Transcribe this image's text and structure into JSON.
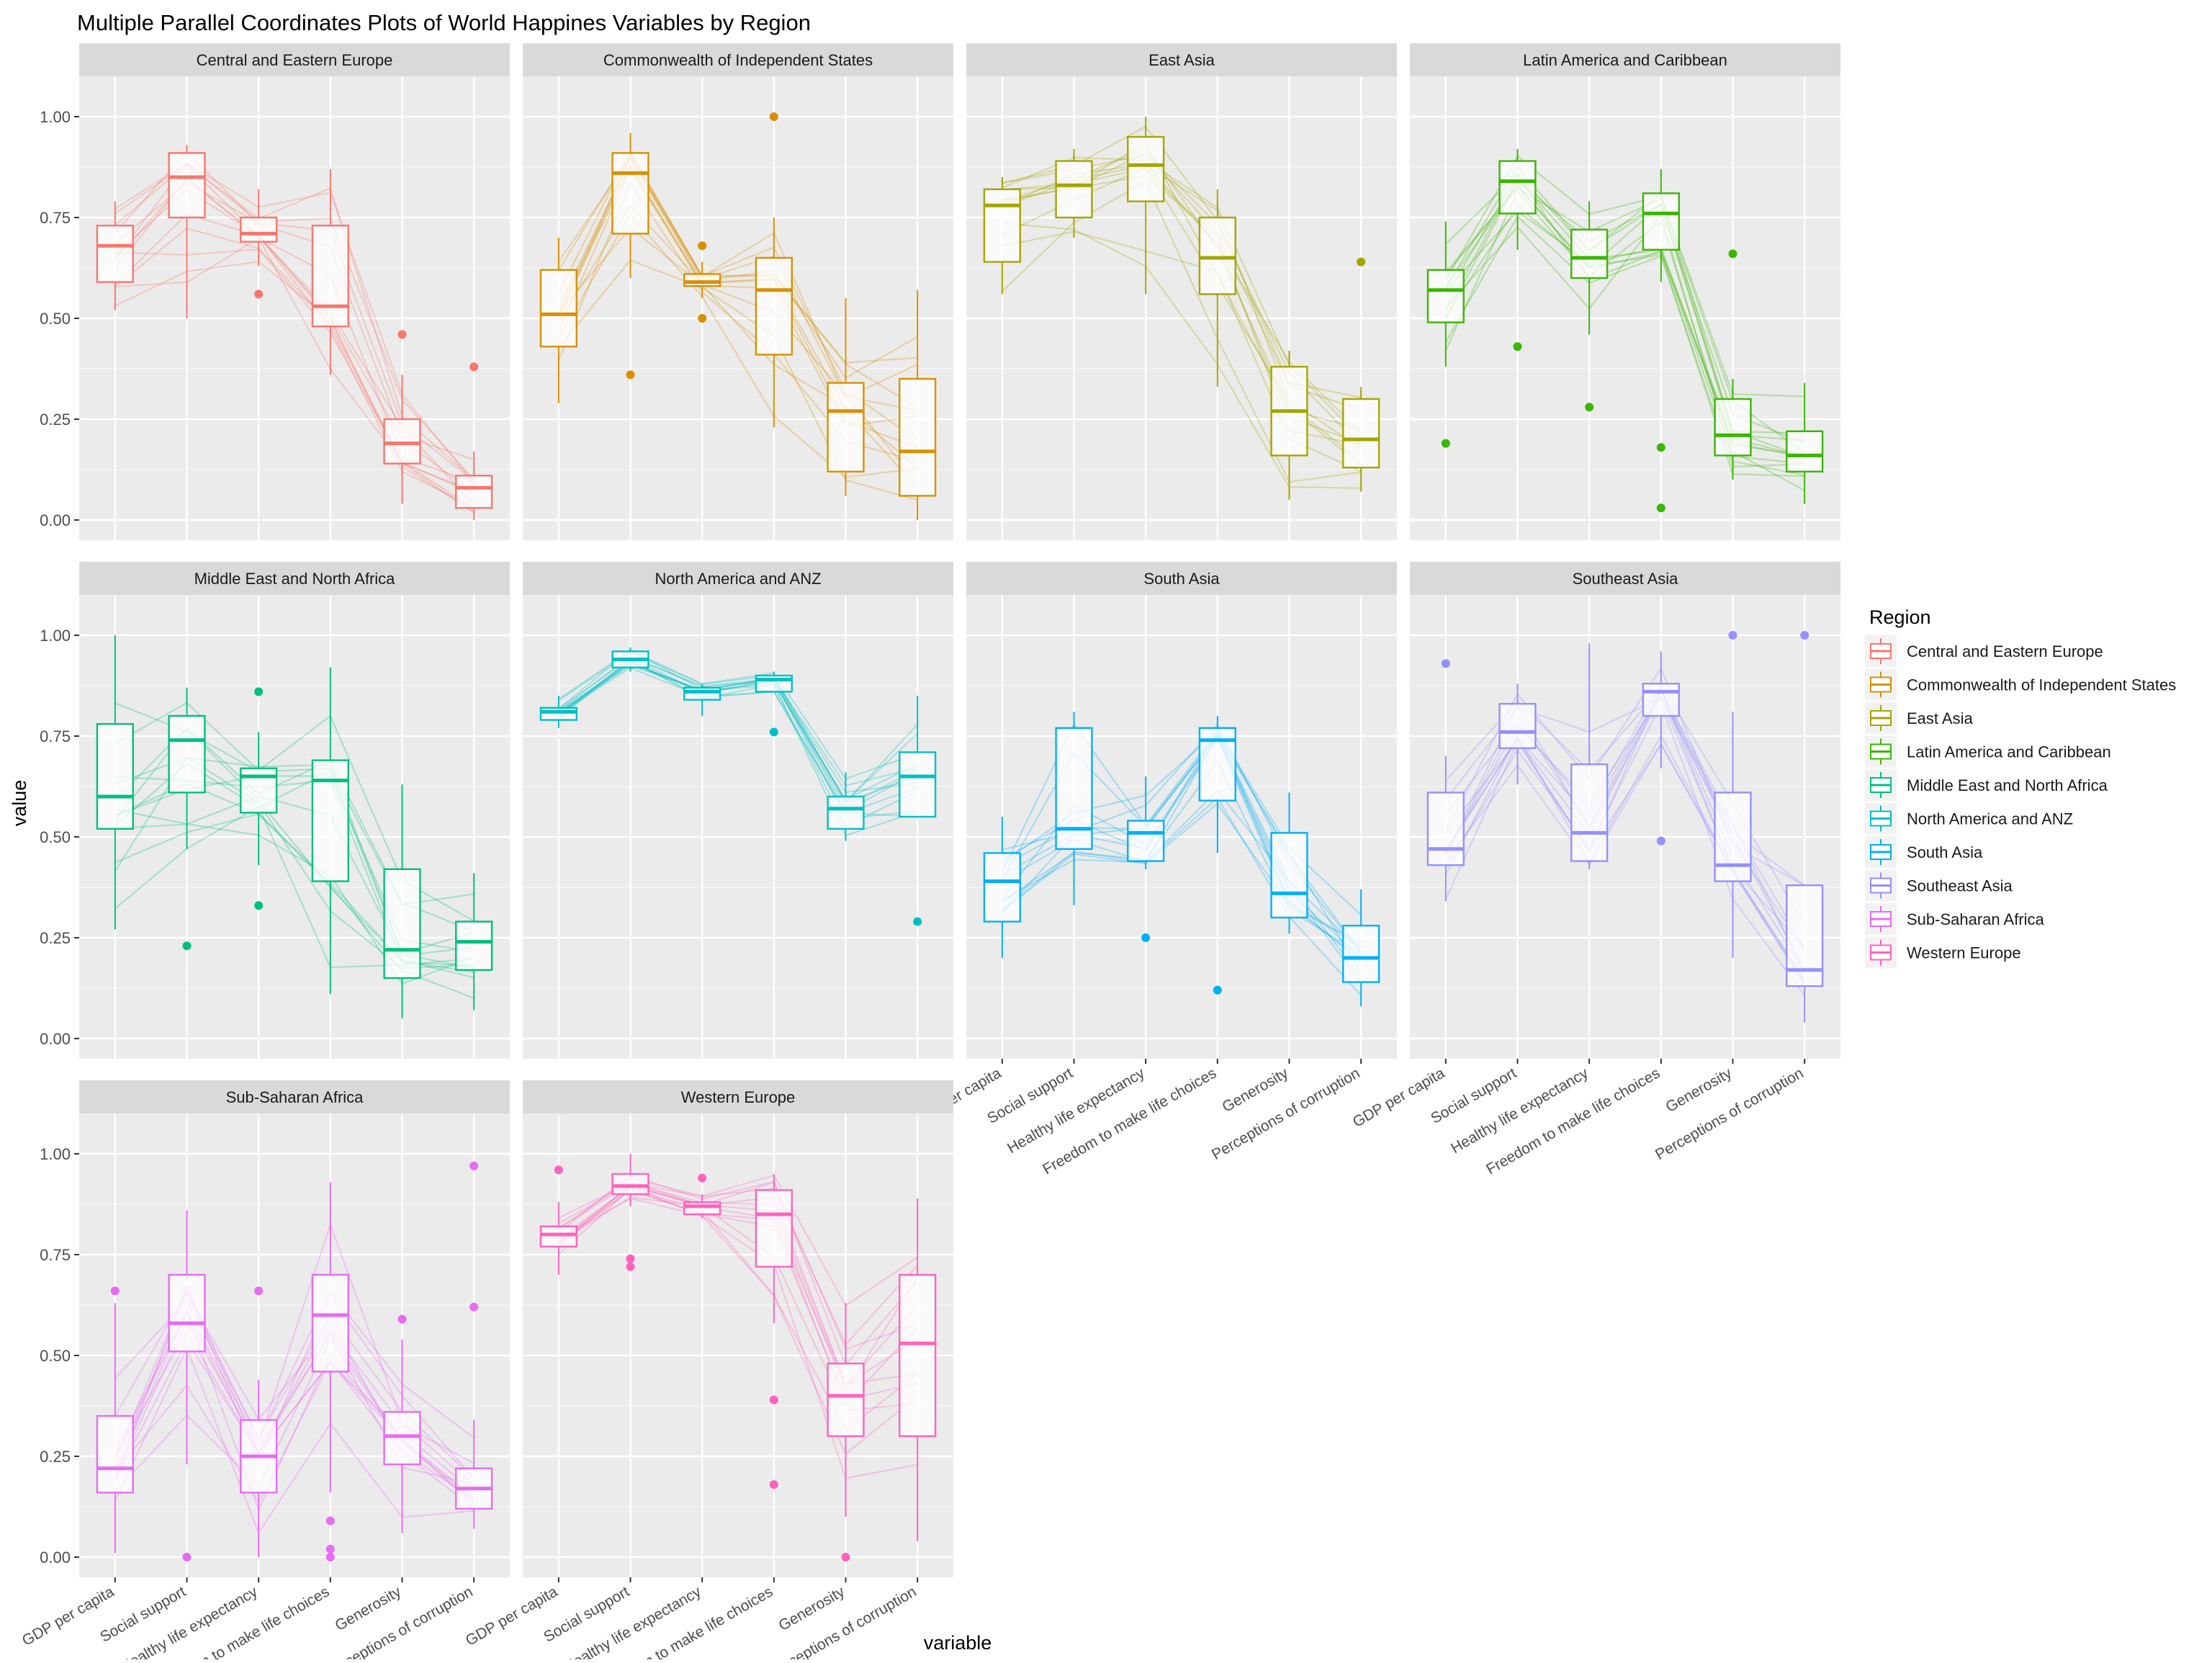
{
  "chart_data": {
    "type": "boxplot-parallel-coordinates-facets",
    "title": "Multiple Parallel Coordinates Plots of World Happines Variables by Region",
    "xlabel": "variable",
    "ylabel": "value",
    "ylim": [
      -0.05,
      1.1
    ],
    "yticks": [
      "0.00",
      "0.25",
      "0.50",
      "0.75",
      "1.00"
    ],
    "variables": [
      "GDP per capita",
      "Social support",
      "Healthy life expectancy",
      "Freedom to make life choices",
      "Generosity",
      "Perceptions of corruption"
    ],
    "legend": {
      "title": "Region",
      "position": "right",
      "entries": [
        "Central and Eastern Europe",
        "Commonwealth of Independent States",
        "East Asia",
        "Latin America and Caribbean",
        "Middle East and North Africa",
        "North America and ANZ",
        "South Asia",
        "Southeast Asia",
        "Sub-Saharan Africa",
        "Western Europe"
      ]
    },
    "grid": true,
    "facets": [
      {
        "region": "Central and Eastern Europe",
        "color": "#F8766D",
        "boxes": [
          [
            0.52,
            0.59,
            0.68,
            0.73,
            0.79
          ],
          [
            0.5,
            0.75,
            0.85,
            0.91,
            0.93
          ],
          [
            0.63,
            0.69,
            0.71,
            0.75,
            0.82
          ],
          [
            0.36,
            0.48,
            0.53,
            0.73,
            0.87
          ],
          [
            0.04,
            0.14,
            0.19,
            0.25,
            0.36
          ],
          [
            0.0,
            0.03,
            0.08,
            0.11,
            0.17
          ]
        ],
        "outliers": [
          [],
          [],
          [
            0.56
          ],
          [],
          [
            0.46
          ],
          [
            0.38
          ]
        ]
      },
      {
        "region": "Commonwealth of Independent States",
        "color": "#D89000",
        "boxes": [
          [
            0.29,
            0.43,
            0.51,
            0.62,
            0.7
          ],
          [
            0.6,
            0.71,
            0.86,
            0.91,
            0.96
          ],
          [
            0.55,
            0.58,
            0.59,
            0.61,
            0.64
          ],
          [
            0.23,
            0.41,
            0.57,
            0.65,
            0.75
          ],
          [
            0.06,
            0.12,
            0.27,
            0.34,
            0.55
          ],
          [
            0.0,
            0.06,
            0.17,
            0.35,
            0.57
          ]
        ],
        "outliers": [
          [],
          [
            0.36
          ],
          [
            0.68,
            0.5
          ],
          [
            1.0
          ],
          [],
          []
        ]
      },
      {
        "region": "East Asia",
        "color": "#A3A500",
        "boxes": [
          [
            0.56,
            0.64,
            0.78,
            0.82,
            0.85
          ],
          [
            0.7,
            0.75,
            0.83,
            0.89,
            0.92
          ],
          [
            0.56,
            0.79,
            0.88,
            0.95,
            1.0
          ],
          [
            0.33,
            0.56,
            0.65,
            0.75,
            0.82
          ],
          [
            0.05,
            0.16,
            0.27,
            0.38,
            0.42
          ],
          [
            0.07,
            0.13,
            0.2,
            0.3,
            0.33
          ]
        ],
        "outliers": [
          [],
          [],
          [],
          [],
          [],
          [
            0.64
          ]
        ]
      },
      {
        "region": "Latin America and Caribbean",
        "color": "#39B600",
        "boxes": [
          [
            0.38,
            0.49,
            0.57,
            0.62,
            0.74
          ],
          [
            0.67,
            0.76,
            0.84,
            0.89,
            0.92
          ],
          [
            0.46,
            0.6,
            0.65,
            0.72,
            0.79
          ],
          [
            0.59,
            0.67,
            0.76,
            0.81,
            0.87
          ],
          [
            0.1,
            0.16,
            0.21,
            0.3,
            0.35
          ],
          [
            0.04,
            0.12,
            0.16,
            0.22,
            0.34
          ]
        ],
        "outliers": [
          [
            0.19
          ],
          [
            0.43
          ],
          [
            0.28
          ],
          [
            0.18,
            0.03
          ],
          [
            0.66
          ],
          []
        ]
      },
      {
        "region": "Middle East and North Africa",
        "color": "#00BF7D",
        "boxes": [
          [
            0.27,
            0.52,
            0.6,
            0.78,
            1.0
          ],
          [
            0.47,
            0.61,
            0.74,
            0.8,
            0.87
          ],
          [
            0.43,
            0.56,
            0.65,
            0.67,
            0.76
          ],
          [
            0.11,
            0.39,
            0.64,
            0.69,
            0.92
          ],
          [
            0.05,
            0.15,
            0.22,
            0.42,
            0.63
          ],
          [
            0.07,
            0.17,
            0.24,
            0.29,
            0.41
          ]
        ],
        "outliers": [
          [],
          [
            0.23
          ],
          [
            0.86,
            0.33
          ],
          [],
          [],
          []
        ]
      },
      {
        "region": "North America and ANZ",
        "color": "#00BFC4",
        "boxes": [
          [
            0.77,
            0.79,
            0.81,
            0.82,
            0.85
          ],
          [
            0.91,
            0.92,
            0.94,
            0.96,
            0.97
          ],
          [
            0.8,
            0.84,
            0.86,
            0.87,
            0.88
          ],
          [
            0.86,
            0.86,
            0.89,
            0.9,
            0.91
          ],
          [
            0.49,
            0.52,
            0.57,
            0.6,
            0.66
          ],
          [
            0.55,
            0.55,
            0.65,
            0.71,
            0.85
          ]
        ],
        "outliers": [
          [],
          [],
          [],
          [
            0.76
          ],
          [],
          [
            0.29
          ]
        ]
      },
      {
        "region": "South Asia",
        "color": "#00B0F6",
        "boxes": [
          [
            0.2,
            0.29,
            0.39,
            0.46,
            0.55
          ],
          [
            0.33,
            0.47,
            0.52,
            0.77,
            0.81
          ],
          [
            0.42,
            0.44,
            0.51,
            0.54,
            0.65
          ],
          [
            0.46,
            0.59,
            0.74,
            0.77,
            0.8
          ],
          [
            0.26,
            0.3,
            0.36,
            0.51,
            0.61
          ],
          [
            0.08,
            0.14,
            0.2,
            0.28,
            0.37
          ]
        ],
        "outliers": [
          [],
          [],
          [
            0.25
          ],
          [
            0.12
          ],
          [],
          []
        ]
      },
      {
        "region": "Southeast Asia",
        "color": "#9590FF",
        "boxes": [
          [
            0.34,
            0.43,
            0.47,
            0.61,
            0.7
          ],
          [
            0.63,
            0.72,
            0.76,
            0.83,
            0.88
          ],
          [
            0.42,
            0.44,
            0.51,
            0.68,
            0.98
          ],
          [
            0.67,
            0.8,
            0.86,
            0.88,
            0.96
          ],
          [
            0.2,
            0.39,
            0.43,
            0.61,
            0.81
          ],
          [
            0.04,
            0.13,
            0.17,
            0.38,
            0.38
          ]
        ],
        "outliers": [
          [
            0.93
          ],
          [],
          [],
          [
            0.49
          ],
          [
            1.0
          ],
          [
            1.0
          ]
        ]
      },
      {
        "region": "Sub-Saharan Africa",
        "color": "#E76BF3",
        "boxes": [
          [
            0.01,
            0.16,
            0.22,
            0.35,
            0.63
          ],
          [
            0.23,
            0.51,
            0.58,
            0.7,
            0.86
          ],
          [
            0.0,
            0.16,
            0.25,
            0.34,
            0.44
          ],
          [
            0.16,
            0.46,
            0.6,
            0.7,
            0.93
          ],
          [
            0.06,
            0.23,
            0.3,
            0.36,
            0.54
          ],
          [
            0.07,
            0.12,
            0.17,
            0.22,
            0.34
          ]
        ],
        "outliers": [
          [
            0.66
          ],
          [
            0.0
          ],
          [
            0.66
          ],
          [
            0.09,
            0.02,
            0.0
          ],
          [
            0.59
          ],
          [
            0.97,
            0.62
          ]
        ]
      },
      {
        "region": "Western Europe",
        "color": "#FF62BC",
        "boxes": [
          [
            0.7,
            0.77,
            0.8,
            0.82,
            0.88
          ],
          [
            0.87,
            0.9,
            0.92,
            0.95,
            1.0
          ],
          [
            0.84,
            0.85,
            0.87,
            0.88,
            0.9
          ],
          [
            0.58,
            0.72,
            0.85,
            0.91,
            0.95
          ],
          [
            0.1,
            0.3,
            0.4,
            0.48,
            0.63
          ],
          [
            0.04,
            0.3,
            0.53,
            0.7,
            0.89
          ]
        ],
        "outliers": [
          [
            0.96
          ],
          [
            0.74,
            0.72
          ],
          [
            0.94
          ],
          [
            0.39,
            0.18
          ],
          [
            0.0
          ],
          []
        ]
      }
    ]
  }
}
